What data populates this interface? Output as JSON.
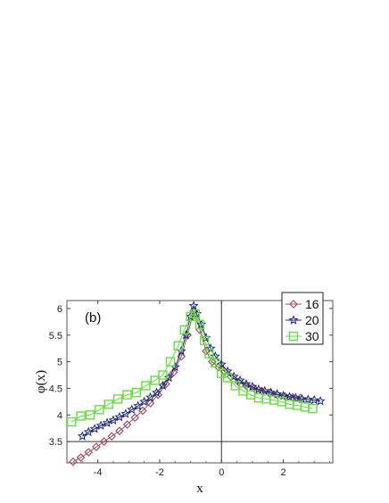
{
  "chart_data": {
    "type": "line",
    "panel_label": "(b)",
    "xlabel": "x",
    "ylabel": "φ(x)",
    "xlim": [
      -5,
      3.6
    ],
    "ylim": [
      3.1,
      6.15
    ],
    "xticks": [
      -4,
      -2,
      0,
      2
    ],
    "yticks": [
      3.5,
      4,
      4.5,
      5,
      5.5,
      6
    ],
    "ytick_labels": [
      "3.5",
      "4",
      "4.5",
      "5",
      "5.5",
      "6"
    ],
    "xtick_labels": [
      "-4",
      "-2",
      "0",
      "2"
    ],
    "reference_lines": {
      "x": 0,
      "y": 3.5
    },
    "legend_position": "top-right",
    "series": [
      {
        "name": "16",
        "color": "#a05060",
        "marker": "diamond",
        "x": [
          -4.8,
          -4.55,
          -4.3,
          -4.05,
          -3.8,
          -3.55,
          -3.3,
          -3.05,
          -2.8,
          -2.55,
          -2.3,
          -2.05,
          -1.8,
          -1.55,
          -1.3,
          -1.1,
          -0.9,
          -0.7,
          -0.5,
          -0.3,
          -0.1,
          0.1,
          0.3,
          0.55,
          0.8,
          1.05,
          1.3,
          1.55,
          1.8,
          2.05,
          2.3,
          2.55
        ],
        "y": [
          3.12,
          3.2,
          3.3,
          3.4,
          3.5,
          3.6,
          3.7,
          3.82,
          3.95,
          4.08,
          4.22,
          4.38,
          4.58,
          4.8,
          5.1,
          5.5,
          5.95,
          5.6,
          5.2,
          5.0,
          4.9,
          4.82,
          4.72,
          4.62,
          4.55,
          4.5,
          4.45,
          4.42,
          4.38,
          4.35,
          4.33,
          4.32
        ]
      },
      {
        "name": "20",
        "color": "#1c2a7a",
        "marker": "star",
        "x": [
          -4.5,
          -4.3,
          -4.1,
          -3.9,
          -3.7,
          -3.5,
          -3.3,
          -3.1,
          -2.9,
          -2.7,
          -2.5,
          -2.3,
          -2.1,
          -1.9,
          -1.7,
          -1.5,
          -1.3,
          -1.15,
          -1.0,
          -0.9,
          -0.8,
          -0.65,
          -0.5,
          -0.35,
          -0.2,
          0.0,
          0.2,
          0.4,
          0.6,
          0.8,
          1.0,
          1.2,
          1.4,
          1.6,
          1.8,
          2.0,
          2.2,
          2.4,
          2.6,
          2.8,
          3.0,
          3.2
        ],
        "y": [
          3.6,
          3.68,
          3.74,
          3.8,
          3.85,
          3.9,
          3.96,
          4.02,
          4.1,
          4.17,
          4.25,
          4.33,
          4.42,
          4.55,
          4.7,
          4.9,
          5.2,
          5.5,
          5.85,
          6.05,
          5.9,
          5.7,
          5.45,
          5.25,
          5.1,
          4.95,
          4.82,
          4.72,
          4.65,
          4.58,
          4.53,
          4.48,
          4.45,
          4.42,
          4.39,
          4.36,
          4.34,
          4.32,
          4.3,
          4.29,
          4.28,
          4.26
        ]
      },
      {
        "name": "30",
        "color": "#66dd44",
        "marker": "square",
        "x": [
          -4.85,
          -4.55,
          -4.25,
          -3.95,
          -3.65,
          -3.35,
          -3.05,
          -2.75,
          -2.45,
          -2.15,
          -1.9,
          -1.65,
          -1.4,
          -1.2,
          -1.0,
          -0.85,
          -0.7,
          -0.55,
          -0.4,
          -0.2,
          0.0,
          0.2,
          0.45,
          0.7,
          0.95,
          1.2,
          1.45,
          1.7,
          1.95,
          2.2,
          2.45,
          2.7,
          2.95
        ],
        "y": [
          3.87,
          3.98,
          4.0,
          4.1,
          4.2,
          4.3,
          4.38,
          4.42,
          4.55,
          4.65,
          4.75,
          5.0,
          5.3,
          5.6,
          5.85,
          5.9,
          5.7,
          5.4,
          5.15,
          4.98,
          4.78,
          4.7,
          4.55,
          4.45,
          4.38,
          4.32,
          4.3,
          4.28,
          4.25,
          4.2,
          4.18,
          4.15,
          4.12
        ]
      }
    ]
  }
}
